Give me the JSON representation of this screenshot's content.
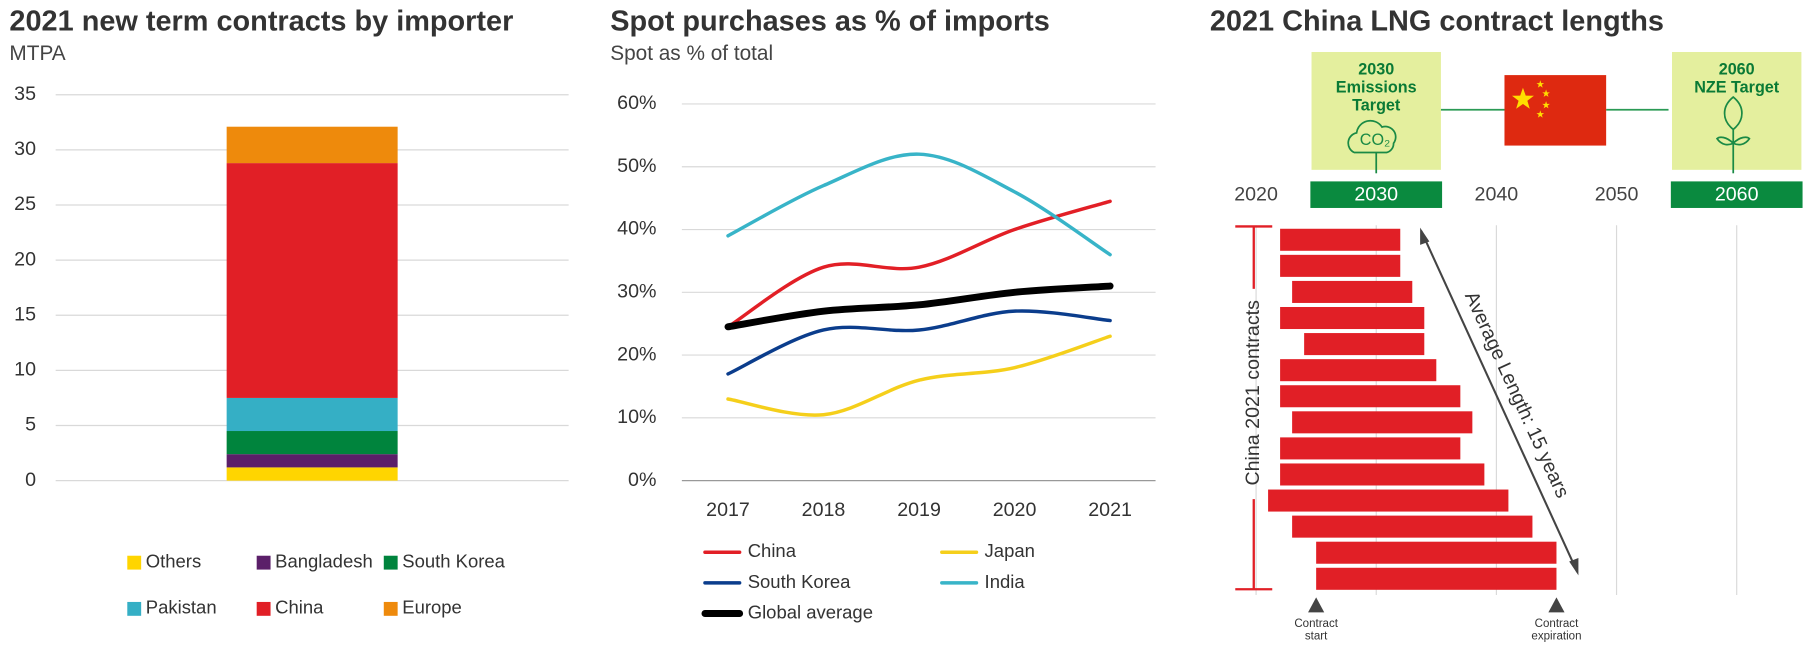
{
  "chart_data": [
    {
      "type": "stacked-bar",
      "title": "2021 new term contracts by importer",
      "subtitle": "MTPA",
      "categories": [
        null
      ],
      "series": [
        {
          "name": "Others",
          "color": "#ffd500",
          "values": [
            1.2
          ]
        },
        {
          "name": "Bangladesh",
          "color": "#5b1f69",
          "values": [
            1.2
          ]
        },
        {
          "name": "South Korea",
          "color": "#00843d",
          "values": [
            2.1
          ]
        },
        {
          "name": "Pakistan",
          "color": "#35afc5",
          "values": [
            3
          ]
        },
        {
          "name": "China",
          "color": "#e11f26",
          "values": [
            21.3
          ]
        },
        {
          "name": "Europe",
          "color": "#ee8a0c",
          "values": [
            3.3
          ]
        }
      ],
      "ylim": [
        0,
        35
      ],
      "yticks": [
        0,
        5,
        10,
        15,
        20,
        25,
        30,
        35
      ],
      "grid": true
    },
    {
      "type": "line",
      "title": "Spot purchases as % of imports",
      "subtitle": "Spot as % of total",
      "x": [
        2017,
        2018,
        2019,
        2020,
        2021
      ],
      "xlim": [
        2016.5,
        2021.5
      ],
      "xticks": [
        2017,
        2018,
        2019,
        2020,
        2021
      ],
      "series": [
        {
          "name": "China",
          "color": "#e21f26",
          "width": 3,
          "values": [
            24.5,
            34,
            34,
            40,
            44.5
          ]
        },
        {
          "name": "Japan",
          "color": "#f5cf1b",
          "width": 3,
          "values": [
            13,
            10.5,
            16,
            18,
            23
          ]
        },
        {
          "name": "South Korea",
          "color": "#0b3d8c",
          "width": 3,
          "values": [
            17,
            24,
            24,
            27,
            25.5
          ]
        },
        {
          "name": "India",
          "color": "#38b4c8",
          "width": 3,
          "values": [
            39,
            47,
            52,
            46,
            36
          ]
        },
        {
          "name": "Global average",
          "color": "#000000",
          "width": 6,
          "values": [
            24.5,
            27,
            28,
            30,
            31
          ]
        }
      ],
      "ylim": [
        0,
        60
      ],
      "yticks": [
        {
          "value": 0,
          "label": "0%"
        },
        {
          "value": 10,
          "label": "10%"
        },
        {
          "value": 20,
          "label": "20%"
        },
        {
          "value": 30,
          "label": "30%"
        },
        {
          "value": 40,
          "label": "40%"
        },
        {
          "value": 50,
          "label": "50%"
        },
        {
          "value": 60,
          "label": "60%"
        }
      ],
      "grid": true
    },
    {
      "type": "range-bar",
      "title": "2021 China LNG contract lengths",
      "starts": [
        2022,
        2022,
        2023,
        2022,
        2024,
        2022,
        2022,
        2023,
        2022,
        2022,
        2021,
        2023,
        2025,
        2025
      ],
      "ends": [
        2032,
        2032,
        2033,
        2034,
        2034,
        2035,
        2037,
        2038,
        2037,
        2039,
        2041,
        2043,
        2045,
        2045
      ],
      "color": "#e11f26",
      "xlim": [
        2018,
        2066
      ],
      "xticks": [
        2020,
        2030,
        2040,
        2050,
        2060
      ],
      "grid": true,
      "targets": [
        {
          "x": 2030,
          "lines": [
            "2030",
            "Emissions",
            "Target"
          ]
        },
        {
          "x": 2060,
          "lines": [
            "2060",
            "NZE Target"
          ]
        }
      ],
      "icon_text": "CO₂",
      "bracket_label": "China 2021 contracts",
      "arrow_label": "Average Length: 15 years",
      "start_marker": [
        "Contract",
        "start"
      ],
      "end_marker": [
        "Contract",
        "expiration"
      ]
    }
  ]
}
